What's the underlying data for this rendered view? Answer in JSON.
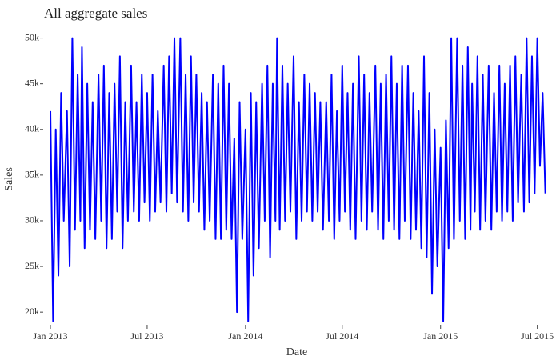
{
  "chart_data": {
    "type": "line",
    "title": "All aggregate sales",
    "x_label": "Date",
    "y_label": "Sales",
    "xlim": [
      "2012-12-20",
      "2015-07-18"
    ],
    "xticks": [
      {
        "value": "2013-01-01",
        "label": "Jan 2013"
      },
      {
        "value": "2013-07-01",
        "label": "Jul 2013"
      },
      {
        "value": "2014-01-01",
        "label": "Jan 2014"
      },
      {
        "value": "2014-07-01",
        "label": "Jul 2014"
      },
      {
        "value": "2015-01-01",
        "label": "Jan 2015"
      },
      {
        "value": "2015-07-01",
        "label": "Jul 2015"
      }
    ],
    "ylim": [
      18700,
      50400
    ],
    "yticks": [
      {
        "value": 20000,
        "label": "20k"
      },
      {
        "value": 25000,
        "label": "25k"
      },
      {
        "value": 30000,
        "label": "30k"
      },
      {
        "value": 35000,
        "label": "35k"
      },
      {
        "value": 40000,
        "label": "40k"
      },
      {
        "value": 45000,
        "label": "45k"
      },
      {
        "value": 50000,
        "label": "50k"
      }
    ],
    "x": [
      "2013-01-01",
      "2013-01-06",
      "2013-01-11",
      "2013-01-16",
      "2013-01-21",
      "2013-01-26",
      "2013-02-01",
      "2013-02-06",
      "2013-02-11",
      "2013-02-16",
      "2013-02-21",
      "2013-02-26",
      "2013-03-01",
      "2013-03-06",
      "2013-03-11",
      "2013-03-16",
      "2013-03-21",
      "2013-03-26",
      "2013-04-01",
      "2013-04-06",
      "2013-04-11",
      "2013-04-16",
      "2013-04-21",
      "2013-04-26",
      "2013-05-01",
      "2013-05-06",
      "2013-05-11",
      "2013-05-16",
      "2013-05-21",
      "2013-05-26",
      "2013-06-01",
      "2013-06-06",
      "2013-06-11",
      "2013-06-16",
      "2013-06-21",
      "2013-06-26",
      "2013-07-01",
      "2013-07-06",
      "2013-07-11",
      "2013-07-16",
      "2013-07-21",
      "2013-07-26",
      "2013-08-01",
      "2013-08-06",
      "2013-08-11",
      "2013-08-16",
      "2013-08-21",
      "2013-08-26",
      "2013-09-01",
      "2013-09-06",
      "2013-09-11",
      "2013-09-16",
      "2013-09-21",
      "2013-09-26",
      "2013-10-01",
      "2013-10-06",
      "2013-10-11",
      "2013-10-16",
      "2013-10-21",
      "2013-10-26",
      "2013-11-01",
      "2013-11-06",
      "2013-11-11",
      "2013-11-16",
      "2013-11-21",
      "2013-11-26",
      "2013-12-01",
      "2013-12-06",
      "2013-12-11",
      "2013-12-16",
      "2013-12-21",
      "2013-12-26",
      "2014-01-01",
      "2014-01-06",
      "2014-01-11",
      "2014-01-16",
      "2014-01-21",
      "2014-01-26",
      "2014-02-01",
      "2014-02-06",
      "2014-02-11",
      "2014-02-16",
      "2014-02-21",
      "2014-02-26",
      "2014-03-01",
      "2014-03-06",
      "2014-03-11",
      "2014-03-16",
      "2014-03-21",
      "2014-03-26",
      "2014-04-01",
      "2014-04-06",
      "2014-04-11",
      "2014-04-16",
      "2014-04-21",
      "2014-04-26",
      "2014-05-01",
      "2014-05-06",
      "2014-05-11",
      "2014-05-16",
      "2014-05-21",
      "2014-05-26",
      "2014-06-01",
      "2014-06-06",
      "2014-06-11",
      "2014-06-16",
      "2014-06-21",
      "2014-06-26",
      "2014-07-01",
      "2014-07-06",
      "2014-07-11",
      "2014-07-16",
      "2014-07-21",
      "2014-07-26",
      "2014-08-01",
      "2014-08-06",
      "2014-08-11",
      "2014-08-16",
      "2014-08-21",
      "2014-08-26",
      "2014-09-01",
      "2014-09-06",
      "2014-09-11",
      "2014-09-16",
      "2014-09-21",
      "2014-09-26",
      "2014-10-01",
      "2014-10-06",
      "2014-10-11",
      "2014-10-16",
      "2014-10-21",
      "2014-10-26",
      "2014-11-01",
      "2014-11-06",
      "2014-11-11",
      "2014-11-16",
      "2014-11-21",
      "2014-11-26",
      "2014-12-01",
      "2014-12-06",
      "2014-12-11",
      "2014-12-16",
      "2014-12-21",
      "2014-12-26",
      "2015-01-01",
      "2015-01-06",
      "2015-01-11",
      "2015-01-16",
      "2015-01-21",
      "2015-01-26",
      "2015-02-01",
      "2015-02-06",
      "2015-02-11",
      "2015-02-16",
      "2015-02-21",
      "2015-02-26",
      "2015-03-01",
      "2015-03-06",
      "2015-03-11",
      "2015-03-16",
      "2015-03-21",
      "2015-03-26",
      "2015-04-01",
      "2015-04-06",
      "2015-04-11",
      "2015-04-16",
      "2015-04-21",
      "2015-04-26",
      "2015-05-01",
      "2015-05-06",
      "2015-05-11",
      "2015-05-16",
      "2015-05-21",
      "2015-05-26",
      "2015-06-01",
      "2015-06-06",
      "2015-06-11",
      "2015-06-16",
      "2015-06-21",
      "2015-06-26",
      "2015-07-01",
      "2015-07-06",
      "2015-07-11",
      "2015-07-16"
    ],
    "series": [
      {
        "name": "Sales",
        "color": "#0000ff",
        "values": [
          42000,
          19000,
          40000,
          24000,
          44000,
          30000,
          42000,
          25000,
          50000,
          29000,
          46000,
          30000,
          49000,
          27000,
          45000,
          29000,
          43000,
          28000,
          46000,
          30000,
          47000,
          27000,
          44000,
          28000,
          45000,
          31000,
          48000,
          27000,
          43000,
          30000,
          47000,
          31000,
          43000,
          30000,
          46000,
          32000,
          44000,
          30000,
          46000,
          31000,
          42000,
          32000,
          47000,
          31000,
          48000,
          33000,
          50000,
          32000,
          50000,
          31000,
          46000,
          30000,
          48000,
          32000,
          46000,
          31000,
          44000,
          29000,
          43000,
          30000,
          46000,
          28000,
          45000,
          28000,
          47000,
          29000,
          45000,
          28000,
          39000,
          20000,
          43000,
          28000,
          40000,
          19000,
          44000,
          24000,
          43000,
          27000,
          45000,
          30000,
          47000,
          26000,
          45000,
          30000,
          50000,
          29000,
          47000,
          30000,
          45000,
          31000,
          48000,
          28000,
          43000,
          30000,
          46000,
          31000,
          45000,
          30000,
          44000,
          31000,
          43000,
          29000,
          43000,
          30000,
          46000,
          28000,
          42000,
          30000,
          47000,
          31000,
          44000,
          29000,
          45000,
          28000,
          48000,
          30000,
          46000,
          29000,
          44000,
          31000,
          47000,
          29000,
          45000,
          28000,
          46000,
          30000,
          48000,
          29000,
          45000,
          28000,
          47000,
          30000,
          47000,
          28000,
          44000,
          29000,
          42000,
          27000,
          48000,
          26000,
          44000,
          22000,
          40000,
          25000,
          38000,
          19000,
          41000,
          27000,
          50000,
          28000,
          50000,
          30000,
          47000,
          28000,
          49000,
          29000,
          45000,
          31000,
          48000,
          29000,
          46000,
          30000,
          47000,
          29000,
          44000,
          31000,
          47000,
          30000,
          45000,
          31000,
          47000,
          30000,
          48000,
          32000,
          46000,
          31000,
          50000,
          32000,
          48000,
          33000,
          50000,
          36000,
          44000,
          33000
        ]
      }
    ]
  }
}
